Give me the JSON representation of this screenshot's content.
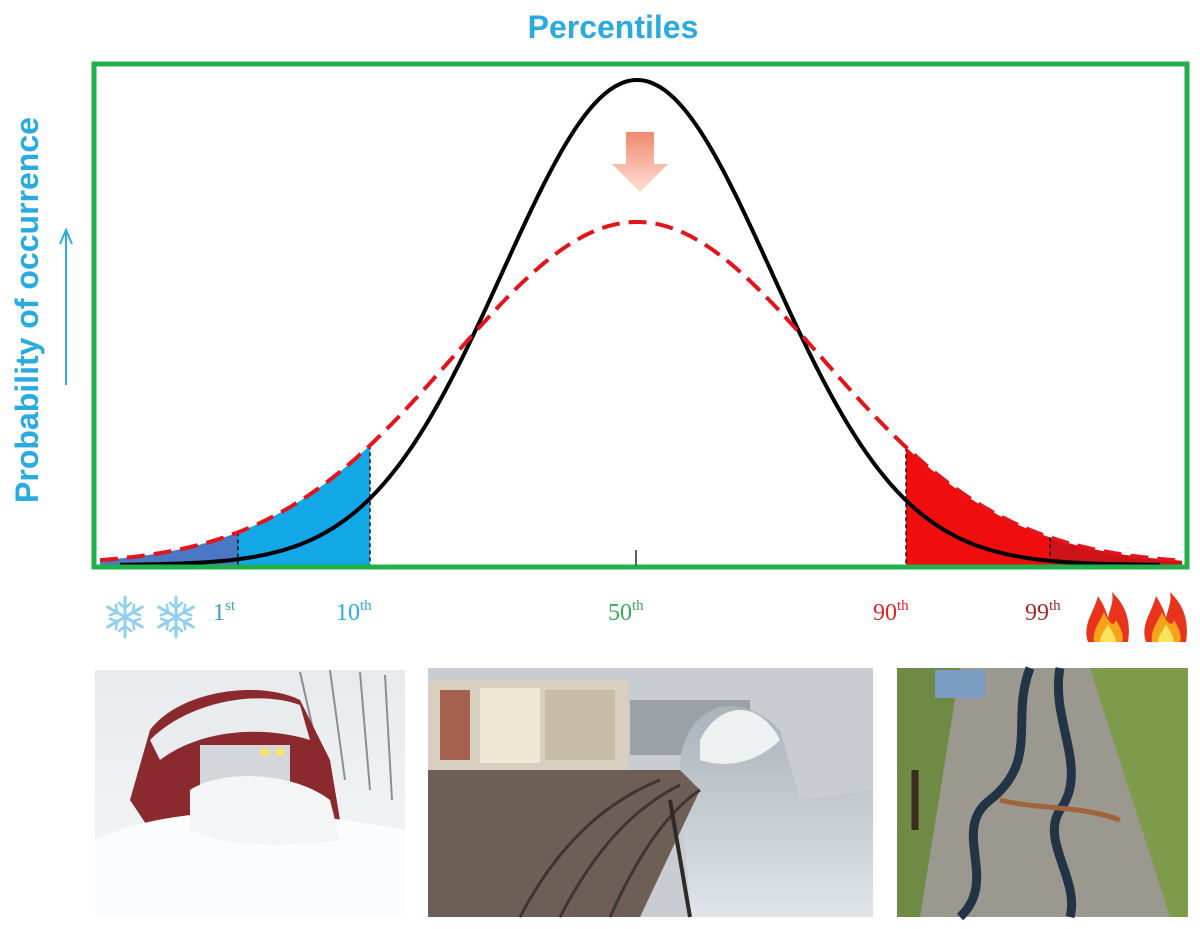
{
  "title": "Percentiles",
  "y_axis_label": "Probability of occurrence",
  "percentiles": [
    {
      "number": "1",
      "suffix": "st"
    },
    {
      "number": "10",
      "suffix": "th"
    },
    {
      "number": "50",
      "suffix": "th"
    },
    {
      "number": "90",
      "suffix": "th"
    },
    {
      "number": "99",
      "suffix": "th"
    }
  ]
}
